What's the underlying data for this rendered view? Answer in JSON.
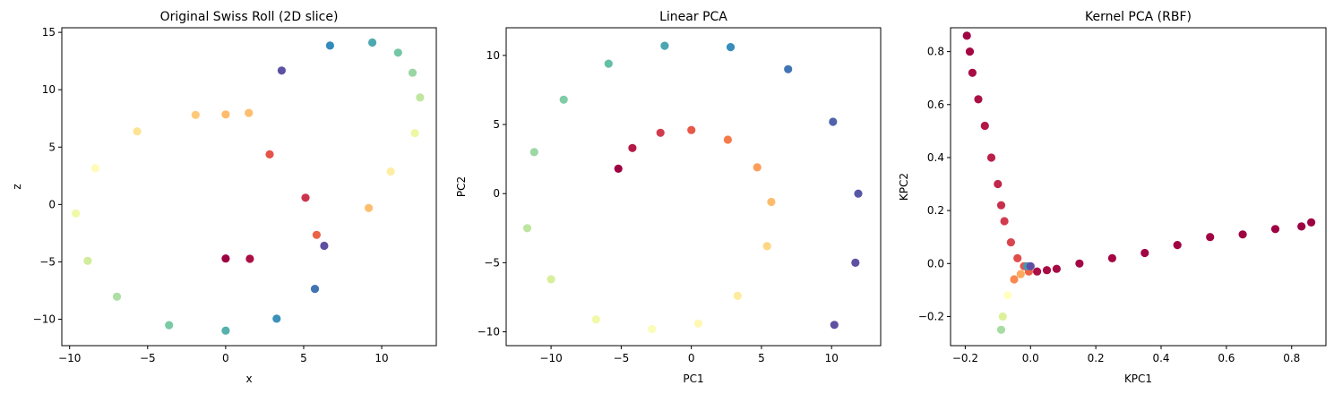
{
  "chart_data": [
    {
      "type": "scatter",
      "title": "Original Swiss Roll (2D slice)",
      "xlabel": "x",
      "ylabel": "z",
      "xlim": [
        -10.5,
        13.5
      ],
      "ylim": [
        -12.3,
        15.4
      ],
      "xticks": [
        -10,
        -5,
        0,
        5,
        10
      ],
      "yticks": [
        -10,
        -5,
        0,
        5,
        10,
        15
      ],
      "grid": false,
      "colormap": "Spectral",
      "series": [
        {
          "x": [
            0.0,
            1.55,
            5.83,
            9.17,
            10.58,
            12.13,
            12.46,
            11.98,
            11.05,
            9.4,
            6.69,
            3.59,
            1.48,
            -1.93,
            -5.67,
            -8.35,
            -9.6,
            -8.84,
            -6.97,
            -3.63,
            0.0,
            3.27,
            5.72,
            6.32,
            5.12,
            2.82,
            0.0
          ],
          "y": [
            -4.71,
            -4.73,
            -2.65,
            -0.31,
            2.88,
            6.22,
            9.32,
            11.48,
            13.23,
            14.11,
            13.85,
            11.67,
            7.98,
            7.81,
            6.37,
            3.16,
            -0.78,
            -4.91,
            -8.03,
            -10.51,
            -10.99,
            -9.95,
            -7.35,
            -3.6,
            0.59,
            4.37,
            7.85
          ],
          "t": [
            4.71,
            4.93,
            6.37,
            7.84,
            8.92,
            10.13,
            10.99,
            11.57,
            12.09,
            12.7,
            13.19,
            14.12,
            7.85,
            8.08,
            8.61,
            9.3,
            10.03,
            10.72,
            11.27,
            12.0,
            12.56,
            13.07,
            13.55,
            14.16,
            5.5,
            6.1,
            7.8
          ]
        }
      ]
    },
    {
      "type": "scatter",
      "title": "Linear PCA",
      "xlabel": "PC1",
      "ylabel": "PC2",
      "xlim": [
        -13.2,
        13.5
      ],
      "ylim": [
        -11.0,
        12.0
      ],
      "xticks": [
        -10,
        -5,
        0,
        5,
        10
      ],
      "yticks": [
        -10,
        -5,
        0,
        5,
        10
      ],
      "grid": false,
      "colormap": "Spectral",
      "series": [
        {
          "x": [
            -5.2,
            -4.2,
            -2.2,
            0.0,
            2.6,
            4.7,
            5.7,
            5.4,
            3.3,
            0.5,
            -2.8,
            -6.8,
            -10.0,
            -11.7,
            -11.2,
            -9.1,
            -5.9,
            -1.9,
            2.8,
            6.9,
            10.1,
            11.9,
            11.7,
            10.2
          ],
          "y": [
            1.8,
            3.3,
            4.4,
            4.6,
            3.9,
            1.9,
            -0.6,
            -3.8,
            -7.4,
            -9.4,
            -9.8,
            -9.1,
            -6.2,
            -2.5,
            3.0,
            6.8,
            9.4,
            10.7,
            10.6,
            9.0,
            5.2,
            0.0,
            -5.0,
            -9.5
          ],
          "t": [
            4.71,
            5.1,
            5.6,
            6.2,
            6.8,
            7.3,
            7.8,
            8.3,
            8.8,
            9.2,
            9.6,
            10.0,
            10.6,
            11.0,
            11.5,
            11.9,
            12.3,
            12.7,
            13.1,
            13.5,
            13.8,
            14.0,
            14.1,
            14.13
          ]
        }
      ]
    },
    {
      "type": "scatter",
      "title": "Kernel PCA (RBF)",
      "xlabel": "KPC1",
      "ylabel": "KPC2",
      "xlim": [
        -0.245,
        0.905
      ],
      "ylim": [
        -0.31,
        0.89
      ],
      "xticks": [
        -0.2,
        0.0,
        0.2,
        0.4,
        0.6,
        0.8
      ],
      "yticks": [
        -0.2,
        0.0,
        0.2,
        0.4,
        0.6,
        0.8
      ],
      "xtick_labels": [
        "−0.2",
        "0.0",
        "0.2",
        "0.4",
        "0.6",
        "0.8"
      ],
      "ytick_labels": [
        "−0.2",
        "0.0",
        "0.2",
        "0.4",
        "0.6",
        "0.8"
      ],
      "grid": false,
      "colormap": "Spectral",
      "series": [
        {
          "x": [
            -0.195,
            -0.186,
            -0.178,
            -0.16,
            -0.14,
            -0.12,
            -0.1,
            -0.09,
            -0.08,
            -0.06,
            -0.04,
            -0.02,
            -0.005,
            0.02,
            0.05,
            0.08,
            0.15,
            0.25,
            0.35,
            0.45,
            0.55,
            0.65,
            0.75,
            0.83,
            0.86,
            -0.05,
            -0.03,
            -0.07,
            -0.085,
            -0.09,
            -0.01,
            0.0
          ],
          "y": [
            0.86,
            0.8,
            0.72,
            0.62,
            0.52,
            0.4,
            0.3,
            0.22,
            0.16,
            0.08,
            0.02,
            -0.01,
            -0.03,
            -0.03,
            -0.025,
            -0.02,
            0.0,
            0.02,
            0.04,
            0.07,
            0.1,
            0.11,
            0.13,
            0.14,
            0.155,
            -0.06,
            -0.04,
            -0.12,
            -0.2,
            -0.25,
            -0.01,
            -0.01
          ],
          "t": [
            4.75,
            4.8,
            4.85,
            4.9,
            5.0,
            5.1,
            5.2,
            5.3,
            5.45,
            5.6,
            5.75,
            5.9,
            6.1,
            4.9,
            4.85,
            4.82,
            4.8,
            4.78,
            4.76,
            4.75,
            4.74,
            4.73,
            4.72,
            4.715,
            4.71,
            6.6,
            7.0,
            8.6,
            9.5,
            10.2,
            11.5,
            12.5
          ]
        }
      ]
    }
  ]
}
